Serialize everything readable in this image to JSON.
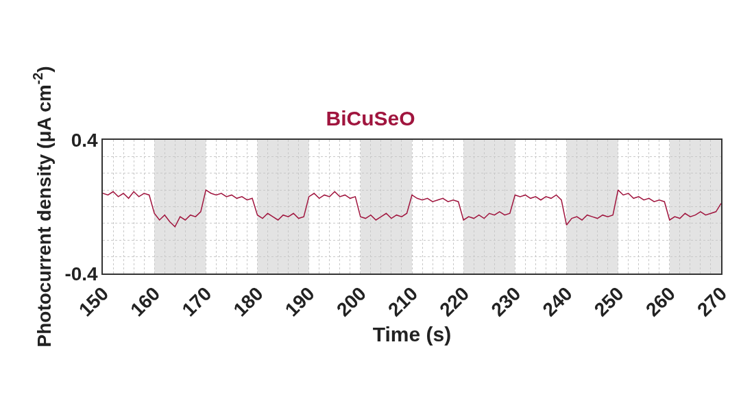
{
  "chart_data": {
    "type": "line",
    "title": "BiCuSeO",
    "xlabel": "Time (s)",
    "ylabel": "Photocurrent density (μA cm$^{-2}$)",
    "x": [
      150,
      151,
      152,
      153,
      154,
      155,
      156,
      157,
      158,
      159,
      160,
      161,
      162,
      163,
      164,
      165,
      166,
      167,
      168,
      169,
      170,
      171,
      172,
      173,
      174,
      175,
      176,
      177,
      178,
      179,
      180,
      181,
      182,
      183,
      184,
      185,
      186,
      187,
      188,
      189,
      190,
      191,
      192,
      193,
      194,
      195,
      196,
      197,
      198,
      199,
      200,
      201,
      202,
      203,
      204,
      205,
      206,
      207,
      208,
      209,
      210,
      211,
      212,
      213,
      214,
      215,
      216,
      217,
      218,
      219,
      220,
      221,
      222,
      223,
      224,
      225,
      226,
      227,
      228,
      229,
      230,
      231,
      232,
      233,
      234,
      235,
      236,
      237,
      238,
      239,
      240,
      241,
      242,
      243,
      244,
      245,
      246,
      247,
      248,
      249,
      250,
      251,
      252,
      253,
      254,
      255,
      256,
      257,
      258,
      259,
      260,
      261,
      262,
      263,
      264,
      265,
      266,
      267,
      268,
      269,
      270
    ],
    "series": [
      {
        "color": "#a0153e",
        "values": [
          0.08,
          0.07,
          0.09,
          0.06,
          0.08,
          0.05,
          0.09,
          0.06,
          0.08,
          0.07,
          -0.04,
          -0.08,
          -0.05,
          -0.09,
          -0.12,
          -0.06,
          -0.08,
          -0.05,
          -0.06,
          -0.03,
          0.1,
          0.08,
          0.07,
          0.08,
          0.06,
          0.07,
          0.05,
          0.06,
          0.04,
          0.05,
          -0.05,
          -0.07,
          -0.04,
          -0.06,
          -0.08,
          -0.05,
          -0.06,
          -0.04,
          -0.07,
          -0.06,
          0.06,
          0.08,
          0.05,
          0.07,
          0.06,
          0.09,
          0.06,
          0.07,
          0.05,
          0.06,
          -0.06,
          -0.07,
          -0.05,
          -0.08,
          -0.06,
          -0.04,
          -0.07,
          -0.05,
          -0.06,
          -0.04,
          0.07,
          0.05,
          0.04,
          0.05,
          0.03,
          0.04,
          0.05,
          0.03,
          0.04,
          0.03,
          -0.08,
          -0.06,
          -0.07,
          -0.05,
          -0.07,
          -0.04,
          -0.05,
          -0.03,
          -0.05,
          -0.04,
          0.07,
          0.06,
          0.07,
          0.05,
          0.06,
          0.04,
          0.06,
          0.05,
          0.07,
          0.04,
          -0.11,
          -0.07,
          -0.06,
          -0.08,
          -0.05,
          -0.06,
          -0.07,
          -0.05,
          -0.06,
          -0.05,
          0.1,
          0.07,
          0.08,
          0.05,
          0.06,
          0.04,
          0.05,
          0.03,
          0.04,
          0.03,
          -0.08,
          -0.06,
          -0.07,
          -0.04,
          -0.06,
          -0.05,
          -0.03,
          -0.05,
          -0.04,
          -0.03,
          0.02
        ]
      }
    ],
    "xlim": [
      150,
      270
    ],
    "xticks": [
      150,
      {
        "value": 152,
        "label": null
      },
      {
        "value": 154,
        "label": null
      },
      {
        "value": 156,
        "label": null
      },
      {
        "value": 158,
        "label": null
      },
      160,
      {
        "value": 162,
        "label": null
      },
      {
        "value": 164,
        "label": null
      },
      {
        "value": 166,
        "label": null
      },
      {
        "value": 168,
        "label": null
      },
      170,
      {
        "value": 172,
        "label": null
      },
      {
        "value": 174,
        "label": null
      },
      {
        "value": 176,
        "label": null
      },
      {
        "value": 178,
        "label": null
      },
      180,
      {
        "value": 182,
        "label": null
      },
      {
        "value": 184,
        "label": null
      },
      {
        "value": 186,
        "label": null
      },
      {
        "value": 188,
        "label": null
      },
      190,
      {
        "value": 192,
        "label": null
      },
      {
        "value": 194,
        "label": null
      },
      {
        "value": 196,
        "label": null
      },
      {
        "value": 198,
        "label": null
      },
      200,
      {
        "value": 202,
        "label": null
      },
      {
        "value": 204,
        "label": null
      },
      {
        "value": 206,
        "label": null
      },
      {
        "value": 208,
        "label": null
      },
      210,
      {
        "value": 212,
        "label": null
      },
      {
        "value": 214,
        "label": null
      },
      {
        "value": 216,
        "label": null
      },
      {
        "value": 218,
        "label": null
      },
      220,
      {
        "value": 222,
        "label": null
      },
      {
        "value": 224,
        "label": null
      },
      {
        "value": 226,
        "label": null
      },
      {
        "value": 228,
        "label": null
      },
      230,
      {
        "value": 232,
        "label": null
      },
      {
        "value": 234,
        "label": null
      },
      {
        "value": 236,
        "label": null
      },
      {
        "value": 238,
        "label": null
      },
      240,
      {
        "value": 242,
        "label": null
      },
      {
        "value": 244,
        "label": null
      },
      {
        "value": 246,
        "label": null
      },
      {
        "value": 248,
        "label": null
      },
      250,
      {
        "value": 252,
        "label": null
      },
      {
        "value": 254,
        "label": null
      },
      {
        "value": 256,
        "label": null
      },
      {
        "value": 258,
        "label": null
      },
      260,
      {
        "value": 262,
        "label": null
      },
      {
        "value": 264,
        "label": null
      },
      {
        "value": 266,
        "label": null
      },
      {
        "value": 268,
        "label": null
      },
      270
    ],
    "ylim": [
      -0.4,
      0.4
    ],
    "yticks": [
      -0.4,
      {
        "value": -0.3,
        "label": null
      },
      {
        "value": -0.2,
        "label": null
      },
      {
        "value": -0.1,
        "label": null
      },
      {
        "value": 0,
        "label": null
      },
      {
        "value": 0.1,
        "label": null
      },
      {
        "value": 0.2,
        "label": null
      },
      {
        "value": 0.3,
        "label": null
      },
      0.4
    ],
    "bands": [
      {
        "axis": "x",
        "from": 160,
        "to": 170,
        "color": "#e3e3e3"
      },
      {
        "axis": "x",
        "from": 180,
        "to": 190,
        "color": "#e3e3e3"
      },
      {
        "axis": "x",
        "from": 200,
        "to": 210,
        "color": "#e3e3e3"
      },
      {
        "axis": "x",
        "from": 220,
        "to": 230,
        "color": "#e3e3e3"
      },
      {
        "axis": "x",
        "from": 240,
        "to": 250,
        "color": "#e3e3e3"
      },
      {
        "axis": "x",
        "from": 260,
        "to": 270,
        "color": "#e3e3e3"
      }
    ],
    "grid": true,
    "line_style": "solid"
  }
}
